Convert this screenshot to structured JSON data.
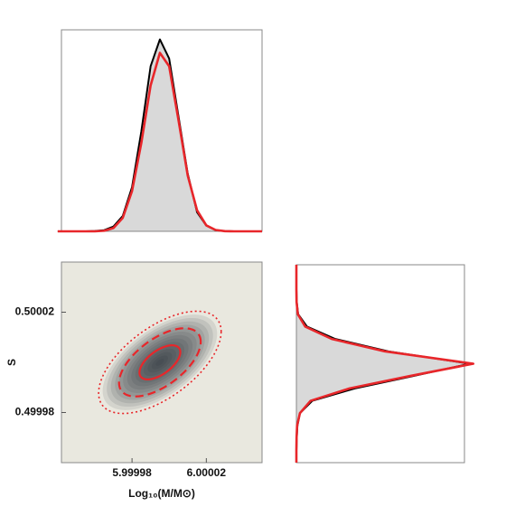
{
  "chart_data": [
    {
      "type": "line",
      "x": [
        5.99994,
        5.999945,
        5.99995,
        5.999955,
        5.99996,
        5.999965,
        5.99997,
        5.999975,
        5.99998,
        5.999985,
        5.99999,
        5.999995,
        6.0,
        6.000005,
        6.00001,
        6.000015,
        6.00002,
        6.000025,
        6.00003,
        6.000035,
        6.00004,
        6.000045,
        6.00005
      ],
      "xlim": [
        5.999942,
        6.00005
      ],
      "ylim": [
        0,
        1.05
      ],
      "fill": "#d9d9d9",
      "series": [
        {
          "color": "#000000",
          "values": [
            0,
            0,
            0,
            0,
            0.002,
            0.006,
            0.025,
            0.08,
            0.23,
            0.52,
            0.86,
            1.0,
            0.9,
            0.6,
            0.3,
            0.1,
            0.03,
            0.006,
            0.001,
            0,
            0,
            0,
            0
          ]
        },
        {
          "color": "#e8262a",
          "values": [
            0,
            0,
            0,
            0,
            0,
            0.003,
            0.017,
            0.07,
            0.21,
            0.46,
            0.76,
            0.93,
            0.86,
            0.58,
            0.29,
            0.11,
            0.031,
            0.007,
            0.001,
            0,
            0,
            0,
            0
          ]
        }
      ]
    },
    {
      "type": "contour",
      "xlabel": "Log₁₀(M/M⊙)",
      "ylabel": "S",
      "xlim": [
        5.999942,
        6.00005
      ],
      "ylim": [
        0.49996,
        0.50004
      ],
      "xticks": [
        5.99998,
        6.00002
      ],
      "yticks": [
        0.49998,
        0.50002
      ],
      "background": "#e9e8df",
      "shade": "#1b2330",
      "center": [
        5.999995,
        0.5
      ],
      "sigma": [
        1.1e-05,
        6.8e-06
      ],
      "rho": 0.6,
      "color": "#e8262a",
      "levels": [
        1,
        2,
        3
      ],
      "styles": [
        "solid",
        "dashed",
        "dotted"
      ]
    },
    {
      "type": "line",
      "orientation": "horizontal",
      "x": [
        0.49996,
        0.499965,
        0.49997,
        0.499975,
        0.49998,
        0.499985,
        0.49999,
        0.499995,
        0.5,
        0.500005,
        0.50001,
        0.500015,
        0.50002,
        0.500025,
        0.50003,
        0.500035,
        0.50004
      ],
      "xlim": [
        0.49996,
        0.50004
      ],
      "ylim": [
        0,
        0.95
      ],
      "fill": "#d9d9d9",
      "series": [
        {
          "color": "#000000",
          "values": [
            0,
            0,
            0.002,
            0.006,
            0.02,
            0.09,
            0.33,
            0.66,
            0.98,
            0.52,
            0.22,
            0.06,
            0.01,
            0.002,
            0,
            0,
            0
          ]
        },
        {
          "color": "#e8262a",
          "values": [
            0,
            0,
            0.001,
            0.004,
            0.02,
            0.08,
            0.3,
            0.64,
            1.0,
            0.5,
            0.2,
            0.05,
            0.008,
            0.001,
            0,
            0,
            0
          ]
        }
      ]
    }
  ]
}
